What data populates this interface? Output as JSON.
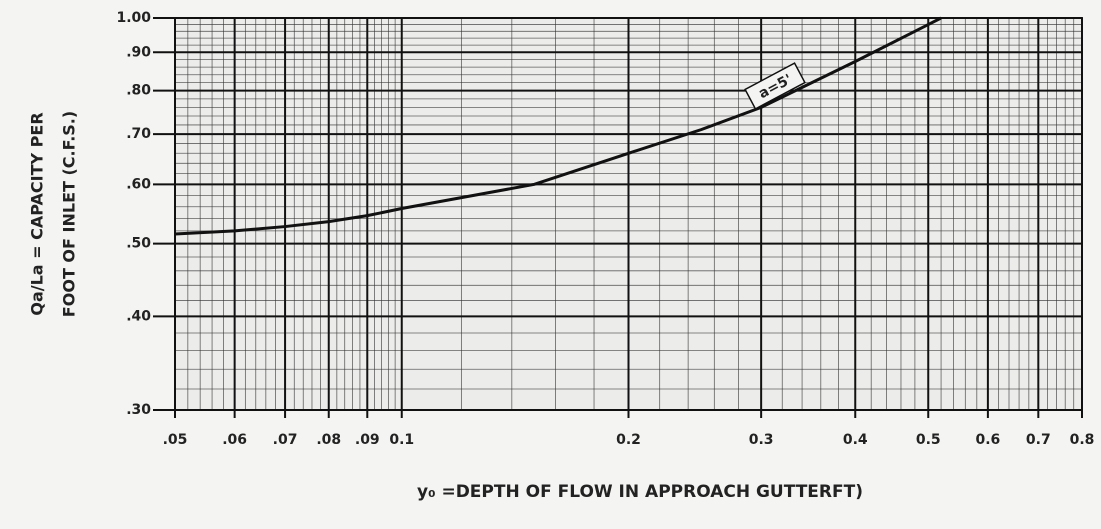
{
  "chart_data": {
    "type": "line",
    "x_label": "y₀ =DEPTH OF FLOW IN APPROACH GUTTERFT)",
    "y_label": [
      "Qa/La = CAPACITY PER",
      "FOOT OF INLET (C.F.S.)"
    ],
    "annotation": "a=5'",
    "log_x": true,
    "log_y": true,
    "grid": true,
    "xlim": [
      0.05,
      0.8
    ],
    "ylim": [
      0.3,
      1.0
    ],
    "xticks": [
      {
        "value": 0.05,
        "label": ".05"
      },
      {
        "value": 0.06,
        "label": ".06"
      },
      {
        "value": 0.07,
        "label": ".07"
      },
      {
        "value": 0.08,
        "label": ".08"
      },
      {
        "value": 0.09,
        "label": ".09"
      },
      0.1,
      0.2,
      0.3,
      0.4,
      0.5,
      0.6,
      0.7,
      0.8
    ],
    "yticks": [
      {
        "value": 0.3,
        "label": ".30"
      },
      {
        "value": 0.4,
        "label": ".40"
      },
      {
        "value": 0.5,
        "label": ".50"
      },
      {
        "value": 0.6,
        "label": ".60"
      },
      {
        "value": 0.7,
        "label": ".70"
      },
      {
        "value": 0.8,
        "label": ".80"
      },
      {
        "value": 0.9,
        "label": ".90"
      },
      {
        "value": 1.0,
        "label": "1.00"
      }
    ],
    "series": [
      {
        "name": "a=5'",
        "color": "#111111",
        "x": [
          0.05,
          0.06,
          0.07,
          0.08,
          0.09,
          0.1,
          0.15,
          0.2,
          0.25,
          0.3,
          0.4,
          0.5,
          0.52
        ],
        "values": [
          0.515,
          0.52,
          0.527,
          0.535,
          0.545,
          0.557,
          0.6,
          0.66,
          0.71,
          0.76,
          0.875,
          0.98,
          1.0
        ]
      }
    ]
  }
}
